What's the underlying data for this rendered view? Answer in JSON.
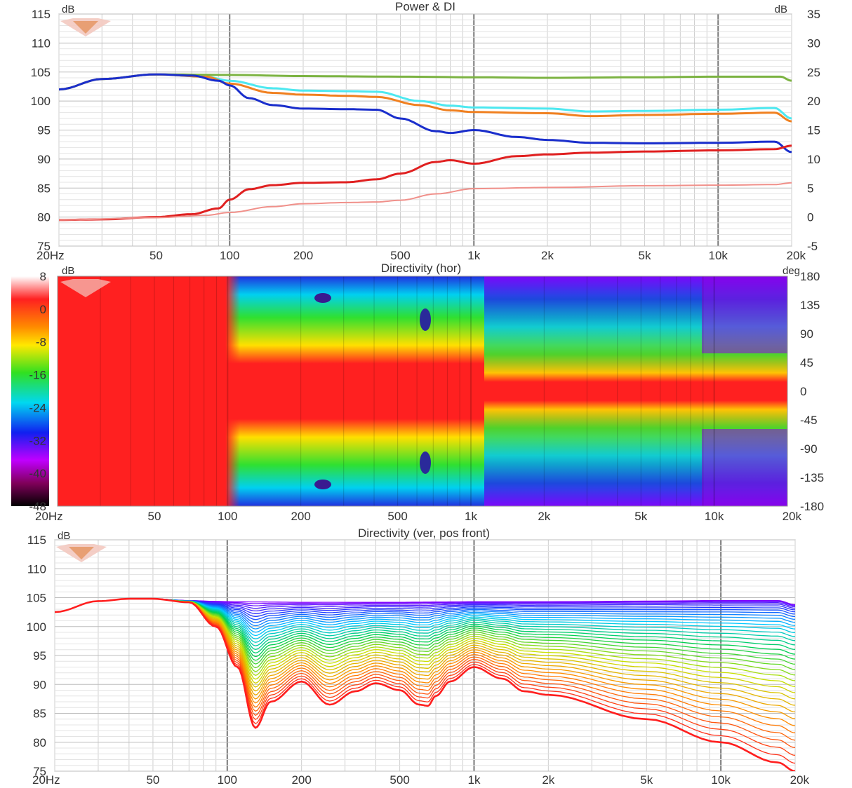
{
  "chart_data": [
    {
      "type": "line",
      "title": "Power & DI",
      "ylabel_left": "dB",
      "ylabel_right": "dB",
      "x_scale": "log",
      "xlim": [
        20,
        20000
      ],
      "ylim": [
        75,
        115
      ],
      "ylim_right": [
        -5,
        35
      ],
      "x_ticks": [
        "20Hz",
        "50",
        "100",
        "200",
        "500",
        "1k",
        "2k",
        "5k",
        "10k",
        "20k"
      ],
      "y_ticks": [
        "115",
        "110",
        "105",
        "100",
        "95",
        "90",
        "85",
        "80",
        "75"
      ],
      "y_ticks_right": [
        "35",
        "30",
        "25",
        "20",
        "15",
        "10",
        "5",
        "0",
        "-5"
      ],
      "grid": true,
      "series": [
        {
          "color": "#7CB342",
          "axis": "left",
          "x": [
            20,
            30,
            50,
            100,
            200,
            500,
            1000,
            2000,
            5000,
            10000,
            18000,
            20000
          ],
          "y": [
            102,
            103.8,
            104.6,
            104.5,
            104.3,
            104.2,
            104.1,
            104.0,
            104.1,
            104.2,
            104.2,
            103.5
          ]
        },
        {
          "color": "#4DE8F0",
          "axis": "left",
          "x": [
            20,
            30,
            50,
            80,
            100,
            150,
            200,
            300,
            400,
            600,
            800,
            1000,
            2000,
            3000,
            5000,
            10000,
            17000,
            20000
          ],
          "y": [
            102,
            103.8,
            104.6,
            104.2,
            103.5,
            102.2,
            101.8,
            101.7,
            101.6,
            100.0,
            99.2,
            98.9,
            98.7,
            98.2,
            98.3,
            98.5,
            98.8,
            97.0
          ]
        },
        {
          "color": "#F08020",
          "axis": "left",
          "x": [
            20,
            30,
            50,
            80,
            100,
            150,
            200,
            300,
            400,
            600,
            800,
            1000,
            2000,
            3000,
            5000,
            10000,
            17000,
            20000
          ],
          "y": [
            102,
            103.8,
            104.6,
            104.2,
            103.0,
            101.4,
            101.1,
            100.9,
            100.7,
            99.3,
            98.4,
            98.1,
            97.9,
            97.4,
            97.6,
            97.8,
            98.0,
            96.5
          ]
        },
        {
          "color": "#1A2ECC",
          "axis": "left",
          "x": [
            20,
            30,
            50,
            70,
            90,
            100,
            120,
            150,
            200,
            300,
            400,
            500,
            700,
            800,
            1000,
            1500,
            2000,
            3000,
            5000,
            10000,
            17000,
            20000
          ],
          "y": [
            102,
            103.8,
            104.6,
            104.4,
            103.5,
            102.7,
            100.5,
            99.3,
            98.7,
            98.6,
            98.5,
            97.0,
            94.8,
            94.5,
            95.0,
            93.8,
            93.3,
            92.8,
            92.7,
            92.8,
            93.0,
            91.2
          ]
        },
        {
          "color": "#E02020",
          "axis": "right",
          "x": [
            20,
            30,
            50,
            70,
            90,
            100,
            120,
            150,
            200,
            300,
            400,
            500,
            700,
            800,
            1000,
            1500,
            2000,
            3000,
            5000,
            10000,
            17000,
            20000
          ],
          "y": [
            -0.5,
            -0.4,
            0.0,
            0.5,
            1.5,
            3.0,
            4.8,
            5.5,
            5.9,
            6.0,
            6.5,
            7.5,
            9.5,
            9.8,
            9.2,
            10.5,
            10.8,
            11.1,
            11.3,
            11.5,
            11.7,
            12.3
          ]
        },
        {
          "color": "#F0908A",
          "axis": "right",
          "x": [
            20,
            50,
            80,
            100,
            150,
            200,
            300,
            400,
            500,
            700,
            1000,
            2000,
            5000,
            10000,
            17000,
            20000
          ],
          "y": [
            -0.5,
            -0.1,
            0.3,
            0.8,
            1.8,
            2.3,
            2.5,
            2.6,
            2.9,
            4.0,
            4.9,
            5.1,
            5.4,
            5.5,
            5.6,
            5.9
          ]
        }
      ]
    },
    {
      "type": "heatmap",
      "title": "Directivity (hor)",
      "ylabel_left": "dB",
      "ylabel_right": "deg",
      "x_scale": "log",
      "xlim": [
        20,
        20000
      ],
      "ylim": [
        -180,
        180
      ],
      "x_ticks": [
        "20Hz",
        "50",
        "100",
        "200",
        "500",
        "1k",
        "2k",
        "5k",
        "10k",
        "20k"
      ],
      "y_ticks_right": [
        "180",
        "135",
        "90",
        "45",
        "0",
        "-45",
        "-90",
        "-135",
        "-180"
      ],
      "colorbar_ticks": [
        "8",
        "0",
        "-8",
        "-16",
        "-24",
        "-32",
        "-40",
        "-48"
      ],
      "colorbar_range": [
        -48,
        8
      ]
    },
    {
      "type": "line",
      "title": "Directivity (ver, pos front)",
      "ylabel": "dB",
      "x_scale": "log",
      "xlim": [
        20,
        20000
      ],
      "ylim": [
        75,
        115
      ],
      "x_ticks": [
        "20Hz",
        "50",
        "100",
        "200",
        "500",
        "1k",
        "2k",
        "5k",
        "10k",
        "20k"
      ],
      "y_ticks": [
        "115",
        "110",
        "105",
        "100",
        "95",
        "90",
        "85",
        "80",
        "75"
      ],
      "grid": true,
      "family_count": 37,
      "family_gradient": [
        "#8A00FF",
        "#1E3CFF",
        "#00C8FF",
        "#00D050",
        "#C8E000",
        "#FF8C00",
        "#FF1E1E"
      ],
      "series_on_axis": {
        "x": [
          20,
          30,
          40,
          50,
          70,
          100,
          200,
          500,
          1000,
          2000,
          5000,
          10000,
          17000,
          20000
        ],
        "y": [
          102.5,
          104.4,
          104.8,
          104.8,
          104.5,
          104.3,
          104.2,
          104.2,
          104.3,
          104.3,
          104.4,
          104.5,
          104.5,
          103.8
        ]
      },
      "series_off_axis_max": {
        "x": [
          20,
          30,
          40,
          50,
          70,
          90,
          110,
          130,
          150,
          200,
          260,
          330,
          400,
          500,
          600,
          650,
          700,
          800,
          1000,
          1300,
          1600,
          2000,
          5000,
          10000,
          17000,
          20000
        ],
        "y": [
          102.5,
          104.4,
          104.8,
          104.8,
          104.2,
          100.0,
          93.0,
          82.5,
          87.0,
          90.5,
          86.5,
          88.8,
          90.2,
          89.0,
          86.5,
          86.3,
          88.0,
          90.5,
          93.0,
          91.0,
          88.8,
          88.2,
          84.0,
          80.0,
          76.5,
          75.0
        ]
      }
    }
  ]
}
